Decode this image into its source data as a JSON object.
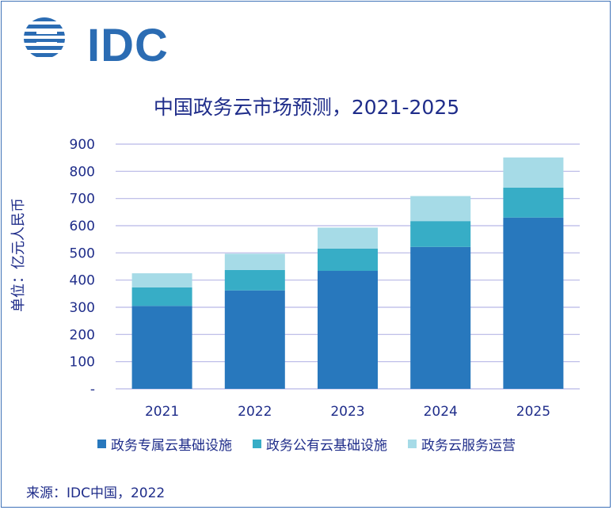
{
  "logo": {
    "text": "IDC"
  },
  "source": "来源：IDC中国，2022",
  "colors": {
    "series1": "#2878bd",
    "series2": "#37adc6",
    "series3": "#a6dbe7",
    "grid": "#b7b7e6",
    "text": "#1f2d8a"
  },
  "chart_data": {
    "type": "bar",
    "stacked": true,
    "title": "中国政务云市场预测，2021-2025",
    "ylabel": "单位：亿元人民币",
    "xlabel": "",
    "categories": [
      "2021",
      "2022",
      "2023",
      "2024",
      "2025"
    ],
    "series": [
      {
        "name": "政务专属云基础设施",
        "values": [
          305,
          362,
          434,
          522,
          630
        ]
      },
      {
        "name": "政务公有云基础设施",
        "values": [
          68,
          75,
          82,
          95,
          110
        ]
      },
      {
        "name": "政务云服务运营",
        "values": [
          52,
          60,
          77,
          92,
          111
        ]
      }
    ],
    "ylim": [
      0,
      900
    ],
    "yticks": [
      "-",
      "100",
      "200",
      "300",
      "400",
      "500",
      "600",
      "700",
      "800",
      "900"
    ],
    "grid": true,
    "legend": "bottom"
  }
}
